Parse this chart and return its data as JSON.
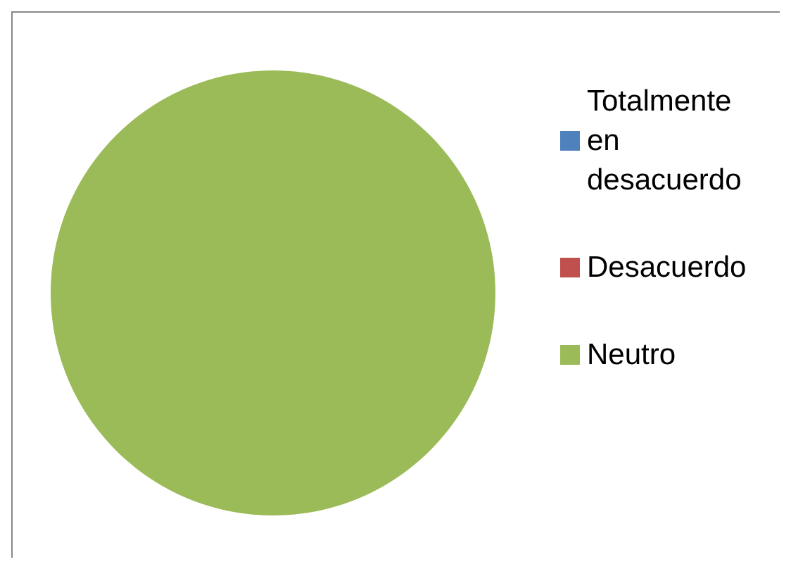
{
  "chart_data": {
    "type": "pie",
    "categories": [
      "Totalmente en desacuerdo",
      "Desacuerdo",
      "Neutro"
    ],
    "values": [
      0,
      0,
      100
    ],
    "colors": [
      "#4f81bd",
      "#c0504d",
      "#9bbb59"
    ],
    "legend": "right"
  }
}
